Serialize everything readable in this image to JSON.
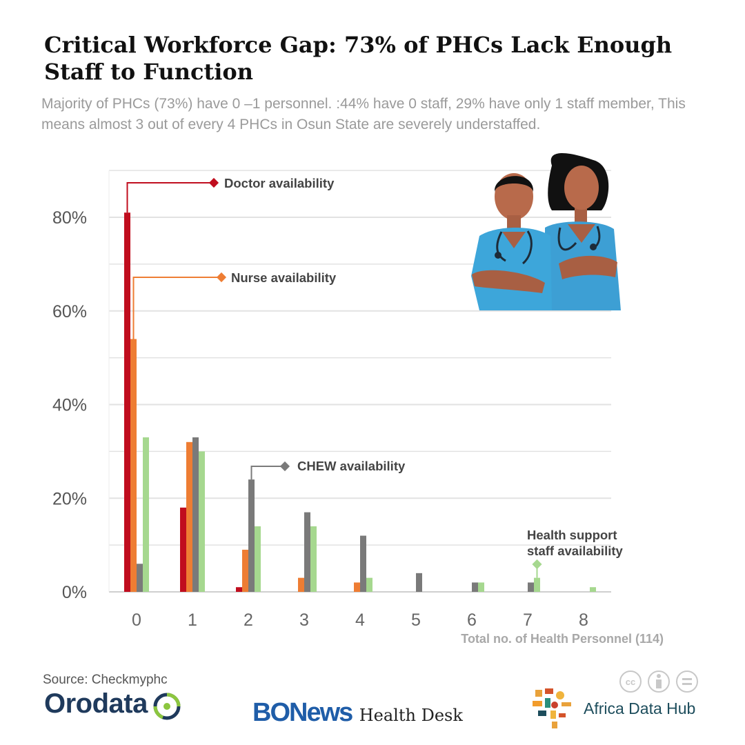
{
  "header": {
    "title": "Critical Workforce Gap: 73% of PHCs Lack Enough Staff to Function",
    "subtitle": "Majority of PHCs (73%) have 0 –1 personnel. :44% have 0 staff, 29% have only 1 staff member,  This means almost 3 out of every 4 PHCs in Osun State are severely understaffed."
  },
  "chart_data": {
    "type": "bar",
    "categories": [
      "0",
      "1",
      "2",
      "3",
      "4",
      "5",
      "6",
      "7",
      "8"
    ],
    "series": [
      {
        "name": "Doctor availability",
        "color": "#c00d1e",
        "values": [
          81,
          18,
          1,
          0,
          0,
          0,
          0,
          0,
          0
        ]
      },
      {
        "name": "Nurse availability",
        "color": "#ee7d33",
        "values": [
          54,
          32,
          9,
          3,
          2,
          0,
          0,
          0,
          0
        ]
      },
      {
        "name": "CHEW availability",
        "color": "#7a7a7a",
        "values": [
          6,
          33,
          24,
          17,
          12,
          4,
          2,
          2,
          0
        ]
      },
      {
        "name": "Health support staff availability",
        "color": "#a6d88f",
        "values": [
          33,
          30,
          14,
          14,
          3,
          0,
          2,
          3,
          1
        ]
      }
    ],
    "ylim": [
      0,
      80
    ],
    "yticks": [
      "0%",
      "20%",
      "40%",
      "60%",
      "80%"
    ],
    "xlabel": "Total no. of Health Personnel (114)",
    "ylabel": "",
    "grid": true,
    "annotations": [
      {
        "series": 0,
        "lines": [
          "Doctor availability"
        ]
      },
      {
        "series": 1,
        "lines": [
          "Nurse availability"
        ]
      },
      {
        "series": 2,
        "lines": [
          "CHEW availability"
        ]
      },
      {
        "series": 3,
        "lines": [
          "Health support",
          "staff availability"
        ]
      }
    ]
  },
  "footer": {
    "source": "Source: Checkmyphc",
    "orodata": "Orodata",
    "bonews": "BONews",
    "bonews_desk": "Health Desk",
    "africa_data_hub": "Africa Data Hub",
    "license_icons": [
      "cc-icon",
      "attribution-icon",
      "no-derivatives-icon"
    ]
  }
}
